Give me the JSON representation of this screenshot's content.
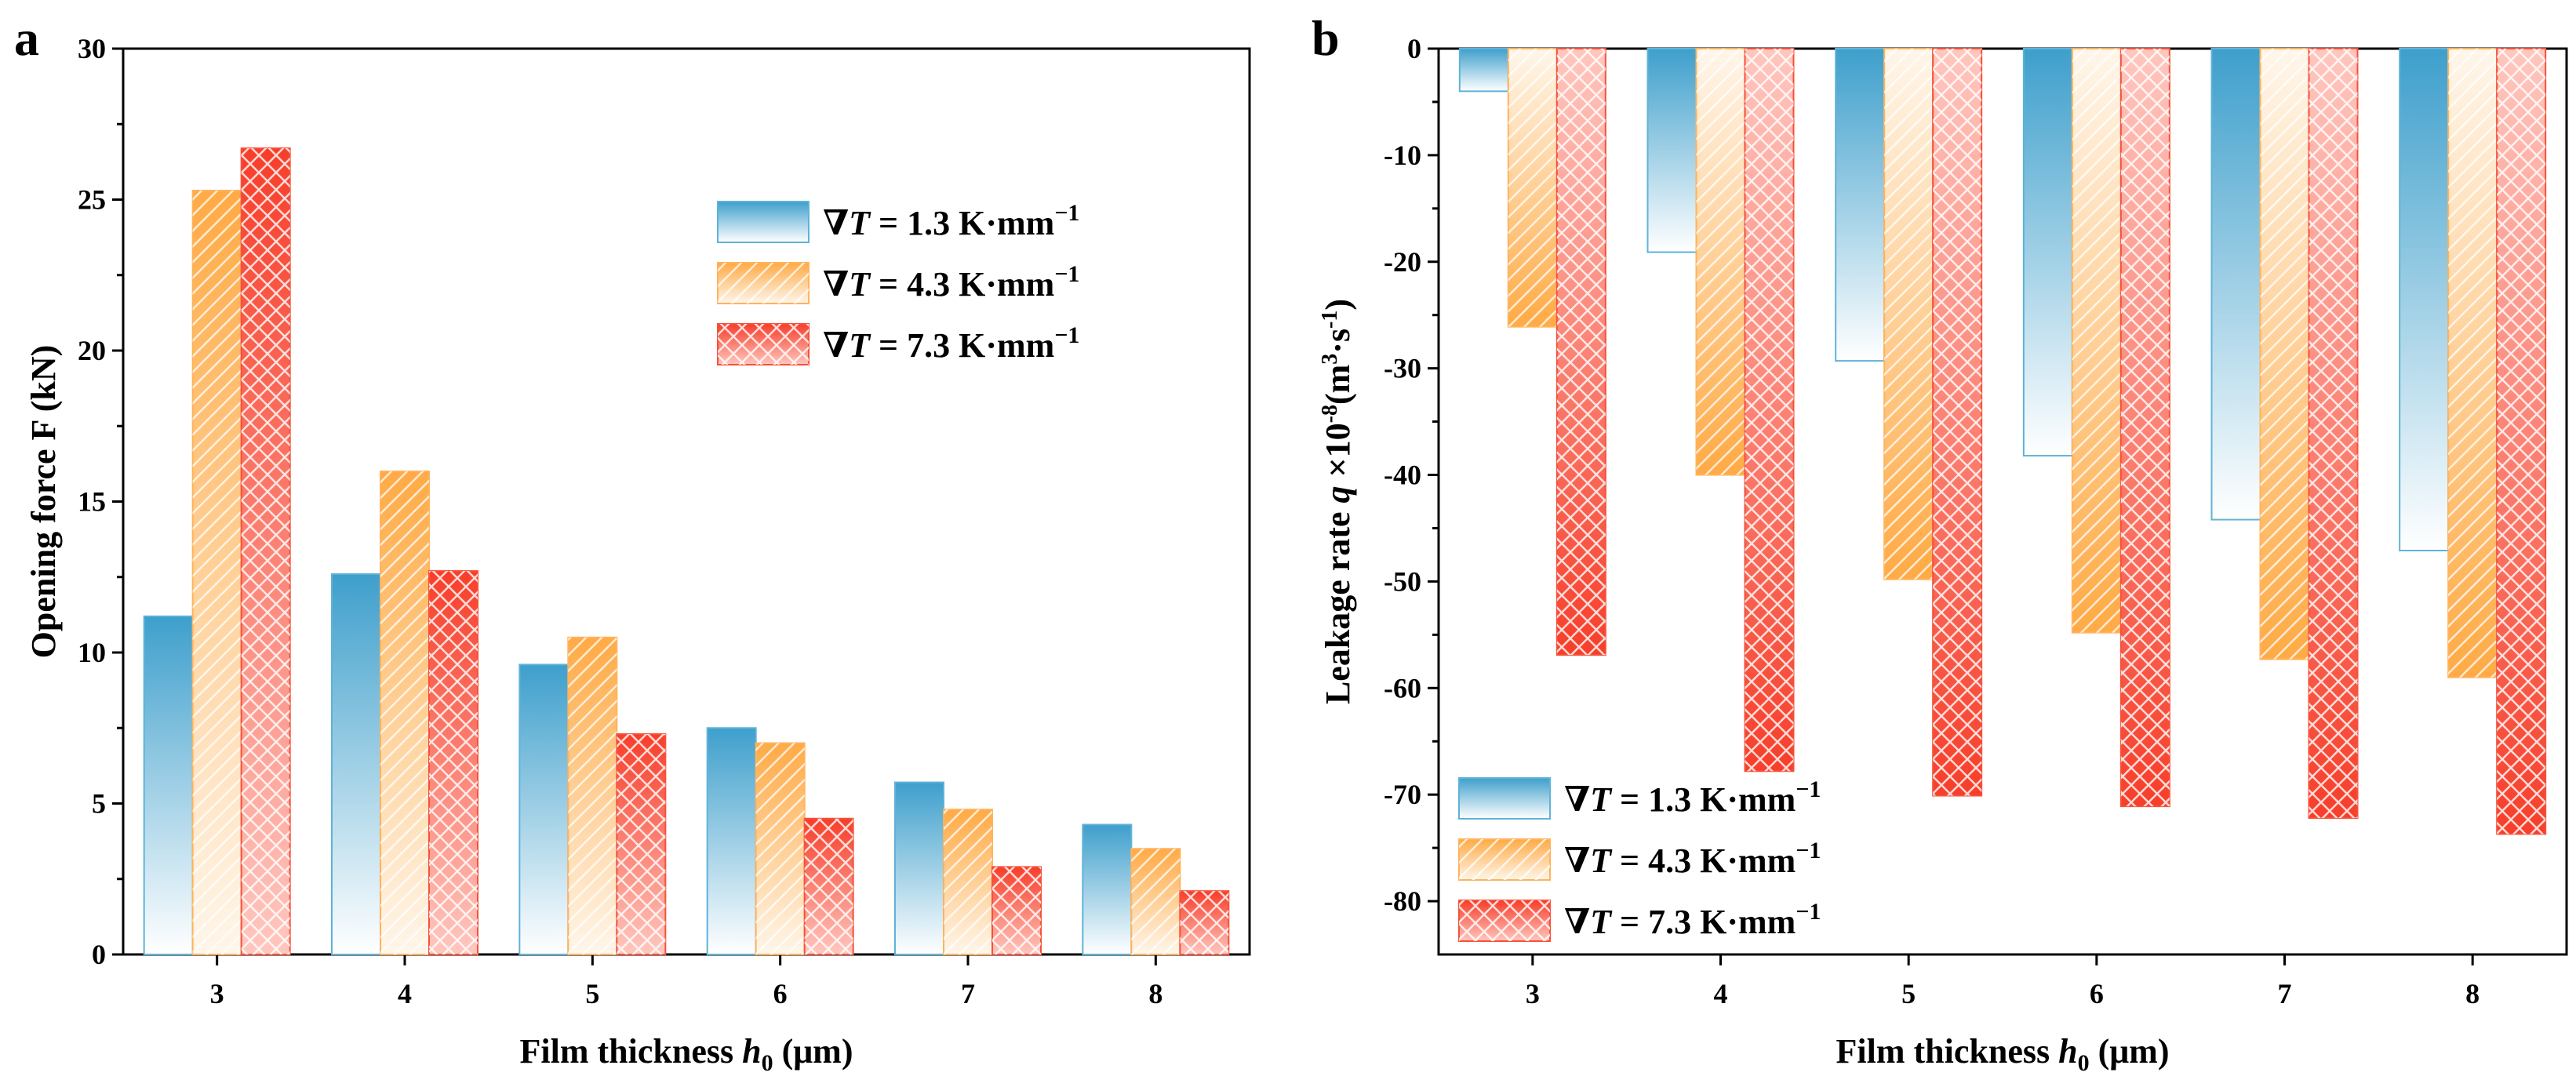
{
  "figure": {
    "panel_a_label": "a",
    "panel_b_label": "b"
  },
  "colors": {
    "blue": "#4FA8D0",
    "orange": "#FFAE4D",
    "red": "#FA5437",
    "axis": "#000000"
  },
  "chart_data": [
    {
      "panel": "a",
      "type": "bar",
      "title": "",
      "xlabel": "Film thickness ",
      "xlabel_var": "h",
      "xlabel_sub": "0",
      "xlabel_unit": " (μm)",
      "ylabel": "Opening force F (kN)",
      "categories": [
        "3",
        "4",
        "5",
        "6",
        "7",
        "8"
      ],
      "ylim": [
        0,
        30
      ],
      "yticks": [
        0,
        5,
        10,
        15,
        20,
        25,
        30
      ],
      "legend_position": "upper-center",
      "series": [
        {
          "name": "∇T = 1.3 K·mm⁻¹",
          "legend_prefix": "∇",
          "legend_var": "T",
          "legend_value": " = 1.3 K·mm",
          "legend_sup": "−1",
          "style": "blue-gradient",
          "values": [
            11.2,
            12.6,
            9.6,
            7.5,
            5.7,
            4.3
          ]
        },
        {
          "name": "∇T = 4.3 K·mm⁻¹",
          "legend_prefix": "∇",
          "legend_var": "T",
          "legend_value": " = 4.3 K·mm",
          "legend_sup": "−1",
          "style": "orange-hatch",
          "values": [
            25.3,
            16.0,
            10.5,
            7.0,
            4.8,
            3.5
          ]
        },
        {
          "name": "∇T = 7.3 K·mm⁻¹",
          "legend_prefix": "∇",
          "legend_var": "T",
          "legend_value": " = 7.3 K·mm",
          "legend_sup": "−1",
          "style": "red-crosshatch",
          "values": [
            26.7,
            12.7,
            7.3,
            4.5,
            2.9,
            2.1
          ]
        }
      ]
    },
    {
      "panel": "b",
      "type": "bar",
      "title": "",
      "xlabel": "Film thickness ",
      "xlabel_var": "h",
      "xlabel_sub": "0",
      "xlabel_unit": " (μm)",
      "ylabel_prefix": "Leakage rate ",
      "ylabel_var": "q",
      "ylabel_mid": " ×10",
      "ylabel_sup1": "-8",
      "ylabel_unit1": "(m",
      "ylabel_sup2": "3",
      "ylabel_unit2": "·s",
      "ylabel_sup3": "-1",
      "ylabel_end": ")",
      "categories": [
        "3",
        "4",
        "5",
        "6",
        "7",
        "8"
      ],
      "ylim": [
        -85,
        0
      ],
      "yticks": [
        0,
        -10,
        -20,
        -30,
        -40,
        -50,
        -60,
        -70,
        -80
      ],
      "legend_position": "lower-left",
      "series": [
        {
          "name": "∇T = 1.3 K·mm⁻¹",
          "legend_prefix": "∇",
          "legend_var": "T",
          "legend_value": " = 1.3 K·mm",
          "legend_sup": "−1",
          "style": "blue-gradient",
          "values": [
            -4.0,
            -19.1,
            -29.3,
            -38.2,
            -44.2,
            -47.1
          ]
        },
        {
          "name": "∇T = 4.3 K·mm⁻¹",
          "legend_prefix": "∇",
          "legend_var": "T",
          "legend_value": " = 4.3 K·mm",
          "legend_sup": "−1",
          "style": "orange-hatch",
          "values": [
            -26.1,
            -40.0,
            -49.8,
            -54.8,
            -57.3,
            -59.0
          ]
        },
        {
          "name": "∇T = 7.3 K·mm⁻¹",
          "legend_prefix": "∇",
          "legend_var": "T",
          "legend_value": " = 7.3 K·mm",
          "legend_sup": "−1",
          "style": "red-crosshatch",
          "values": [
            -56.9,
            -67.8,
            -70.1,
            -71.1,
            -72.2,
            -73.7
          ]
        }
      ]
    }
  ]
}
